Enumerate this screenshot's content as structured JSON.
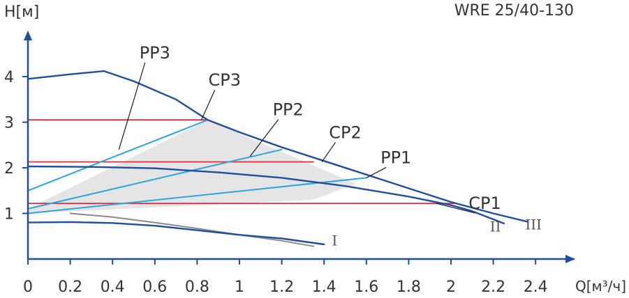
{
  "chart_data": {
    "type": "line",
    "title": "WRE 25/40-130",
    "ylabel": "H[м]",
    "xlabel": "Q[м³/ч]",
    "xlim": [
      0,
      2.6
    ],
    "ylim": [
      0,
      4.9
    ],
    "x_ticks": [
      "0",
      "0.2",
      "0.4",
      "0.6",
      "0.8",
      "1",
      "1.2",
      "1.4",
      "1.6",
      "1.8",
      "2",
      "2.2",
      "2.4"
    ],
    "y_ticks": [
      "1",
      "2",
      "3",
      "4"
    ],
    "grid": false,
    "legend": "none",
    "colors": {
      "curve": "#1f4e9c",
      "pp_line": "#2aa7de",
      "cp_line": "#e0303b",
      "grey_curve": "#8a8a8a",
      "area": "#dcdcdc",
      "axis": "#1f4e9c",
      "text": "#333333"
    },
    "series": [
      {
        "name": "III",
        "kind": "speed",
        "x": [
          0,
          0.2,
          0.36,
          0.5,
          0.7,
          0.85,
          1.0,
          1.2,
          1.4,
          1.6,
          1.8,
          2.0,
          2.2,
          2.36
        ],
        "y": [
          3.95,
          4.05,
          4.12,
          3.9,
          3.5,
          3.05,
          2.78,
          2.45,
          2.15,
          1.85,
          1.55,
          1.25,
          1.0,
          0.82
        ]
      },
      {
        "name": "II",
        "kind": "speed",
        "x": [
          0,
          0.3,
          0.6,
          0.9,
          1.2,
          1.5,
          1.8,
          2.0,
          2.1,
          2.25
        ],
        "y": [
          2.03,
          2.02,
          1.99,
          1.9,
          1.78,
          1.6,
          1.37,
          1.18,
          1.05,
          0.78
        ]
      },
      {
        "name": "I",
        "kind": "speed",
        "x": [
          0,
          0.2,
          0.4,
          0.6,
          0.8,
          1.0,
          1.2,
          1.4
        ],
        "y": [
          0.8,
          0.81,
          0.79,
          0.73,
          0.63,
          0.53,
          0.45,
          0.32
        ]
      },
      {
        "name": "",
        "kind": "grey",
        "x": [
          0.2,
          0.4,
          0.6,
          0.8,
          1.0,
          1.2,
          1.35
        ],
        "y": [
          1.0,
          0.92,
          0.8,
          0.67,
          0.53,
          0.4,
          0.28
        ]
      },
      {
        "name": "PP3",
        "kind": "pp",
        "x": [
          0,
          0.85
        ],
        "y": [
          1.5,
          3.05
        ]
      },
      {
        "name": "PP2",
        "kind": "pp",
        "x": [
          0,
          1.2
        ],
        "y": [
          1.1,
          2.4
        ]
      },
      {
        "name": "PP1",
        "kind": "pp",
        "x": [
          0,
          1.6
        ],
        "y": [
          1.0,
          1.78
        ]
      },
      {
        "name": "CP3",
        "kind": "cp",
        "x": [
          0,
          0.85
        ],
        "y": [
          3.05,
          3.05
        ]
      },
      {
        "name": "CP2",
        "kind": "cp",
        "x": [
          0,
          1.35
        ],
        "y": [
          2.13,
          2.13
        ]
      },
      {
        "name": "CP1",
        "kind": "cp",
        "x": [
          0,
          2.02
        ],
        "y": [
          1.22,
          1.22
        ]
      }
    ],
    "shaded_region": {
      "x": [
        0,
        0.85,
        1.55,
        1.35,
        0
      ],
      "y": [
        1.1,
        3.05,
        1.65,
        1.3,
        1.0
      ]
    },
    "annotations": [
      {
        "text": "PP3",
        "label_x": 0.6,
        "label_y": 4.4,
        "target_x": 0.43,
        "target_y": 2.4
      },
      {
        "text": "CP3",
        "label_x": 0.93,
        "label_y": 3.8,
        "target_x": 0.82,
        "target_y": 3.05
      },
      {
        "text": "PP2",
        "label_x": 1.23,
        "label_y": 3.15,
        "target_x": 1.05,
        "target_y": 2.25
      },
      {
        "text": "CP2",
        "label_x": 1.5,
        "label_y": 2.65,
        "target_x": 1.39,
        "target_y": 2.13
      },
      {
        "text": "PP1",
        "label_x": 1.74,
        "label_y": 2.1,
        "target_x": 1.6,
        "target_y": 1.78
      },
      {
        "text": "CP1",
        "label_x": 2.16,
        "label_y": 1.1,
        "target_x": 1.93,
        "target_y": 1.22
      },
      {
        "text": "I",
        "label_x": 1.45,
        "label_y": 0.3,
        "target_x": null,
        "target_y": null
      },
      {
        "text": "II",
        "label_x": 2.21,
        "label_y": 0.6,
        "target_x": null,
        "target_y": null
      },
      {
        "text": "III",
        "label_x": 2.39,
        "label_y": 0.65,
        "target_x": null,
        "target_y": null
      }
    ]
  }
}
